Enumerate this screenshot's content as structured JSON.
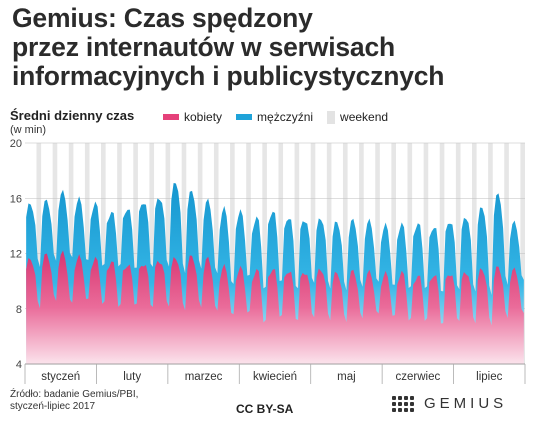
{
  "title_lines": [
    "Gemius: Czas spędzony",
    "przez internautów w serwisach",
    "informacyjnych i publicystycznych"
  ],
  "chart_data": {
    "type": "area",
    "ylabel": "Średni dzienny czas",
    "yunit": "(w min)",
    "ylim": [
      4,
      20
    ],
    "yticks": [
      "4",
      "8",
      "12",
      "16",
      "20"
    ],
    "grid": true,
    "legend_position": "top",
    "legend": [
      {
        "label": "kobiety",
        "color": "#e5417a"
      },
      {
        "label": "mężczyźni",
        "color": "#1fa3d9"
      },
      {
        "label": "weekend",
        "color": "#e3e3e3"
      }
    ],
    "months": [
      "styczeń",
      "luty",
      "marzec",
      "kwiecień",
      "maj",
      "czerwiec",
      "lipiec"
    ],
    "x_period": "2017-01 — 2017-07, tygodnie",
    "series": [
      {
        "name": "kobiety",
        "weekday_peak": [
          11.6,
          11.9,
          12.0,
          11.7,
          11.6,
          11.4,
          11.2,
          11.3,
          11.5,
          11.7,
          11.8,
          11.6,
          11.0,
          10.9,
          10.8,
          10.9,
          10.8,
          10.7,
          10.9,
          10.6,
          10.7,
          10.6,
          10.5,
          10.6,
          10.4,
          10.5,
          10.6,
          10.7,
          10.9,
          11.0,
          10.8
        ],
        "weekend_low": [
          8.2,
          8.6,
          8.3,
          8.5,
          8.3,
          8.2,
          8.4,
          8.3,
          8.4,
          8.1,
          8.2,
          7.8,
          7.4,
          7.6,
          7.0,
          7.5,
          7.3,
          7.6,
          7.4,
          7.2,
          7.3,
          7.5,
          7.3,
          7.1,
          7.2,
          7.0,
          7.3,
          7.2,
          7.0,
          7.4,
          7.6
        ]
      },
      {
        "name": "mężczyźni",
        "weekday_peak": [
          15.6,
          15.8,
          16.4,
          15.9,
          15.6,
          15.0,
          15.3,
          15.8,
          16.1,
          17.2,
          16.5,
          15.8,
          15.2,
          15.0,
          14.6,
          15.1,
          14.7,
          14.5,
          14.6,
          14.3,
          14.4,
          14.3,
          14.0,
          14.1,
          14.2,
          14.0,
          14.4,
          14.7,
          15.4,
          16.3,
          14.2
        ],
        "weekend_low": [
          11.2,
          11.5,
          11.6,
          11.3,
          11.0,
          11.1,
          11.0,
          11.2,
          11.3,
          10.8,
          11.0,
          10.5,
          9.6,
          10.2,
          9.4,
          10.0,
          9.6,
          10.1,
          9.7,
          9.5,
          9.6,
          9.8,
          9.5,
          9.4,
          9.5,
          9.3,
          9.6,
          9.5,
          9.2,
          9.8,
          10.0
        ]
      }
    ]
  },
  "footer": {
    "source_lines": [
      "Źródło: badanie Gemius/PBI,",
      "styczeń-lipiec 2017"
    ],
    "license": "CC BY-SA",
    "logo_text": "GEMIUS"
  }
}
